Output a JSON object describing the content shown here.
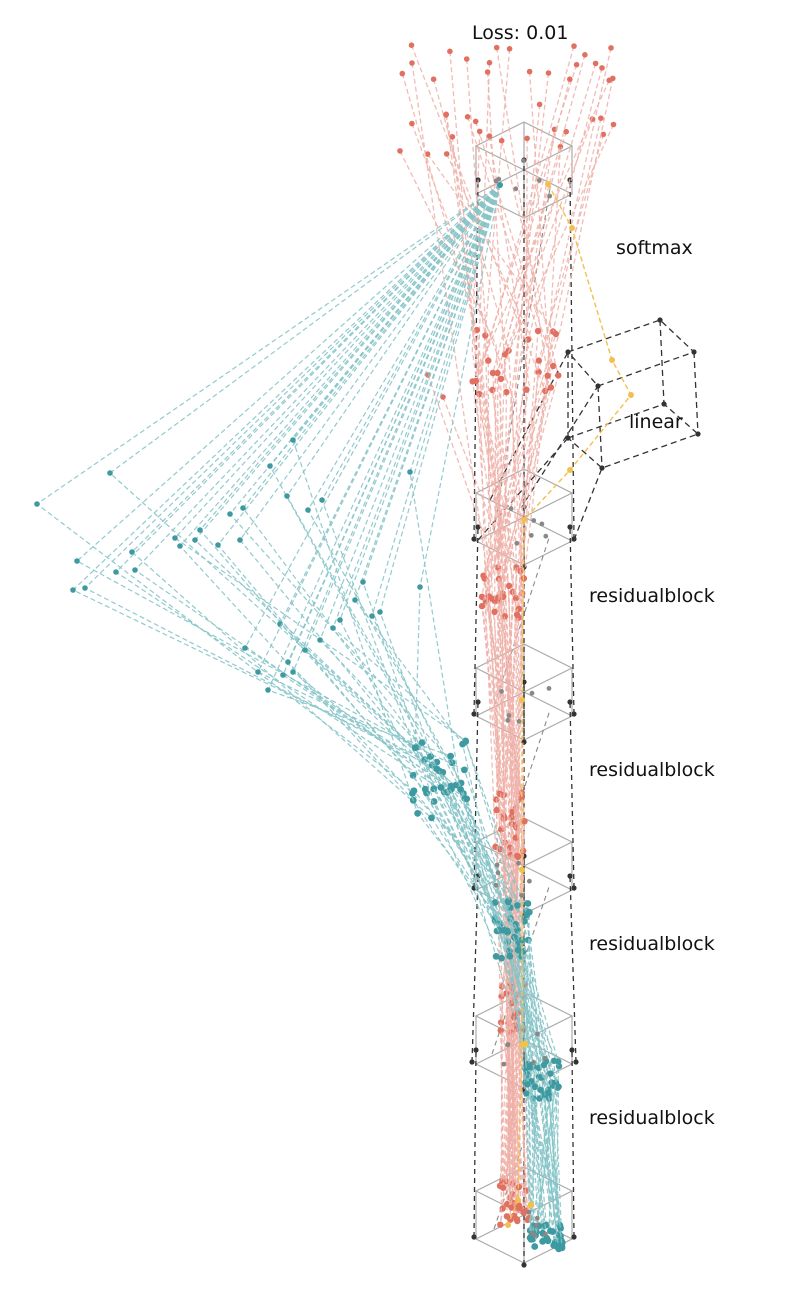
{
  "loss_text": "Loss: 0.01",
  "layers": [
    {
      "name": "softmax"
    },
    {
      "name": "linear"
    },
    {
      "name": "residualblock"
    },
    {
      "name": "residualblock"
    },
    {
      "name": "residualblock"
    },
    {
      "name": "residualblock"
    }
  ],
  "colors": {
    "salmon": "#e07060",
    "salmon_light": "#eeb0a8",
    "teal": "#3e9aa0",
    "teal_light": "#86c4c8",
    "gold": "#f2c04e",
    "box_dark": "#333333",
    "box_gray": "#aaaaaa",
    "node_gray": "#888888"
  }
}
